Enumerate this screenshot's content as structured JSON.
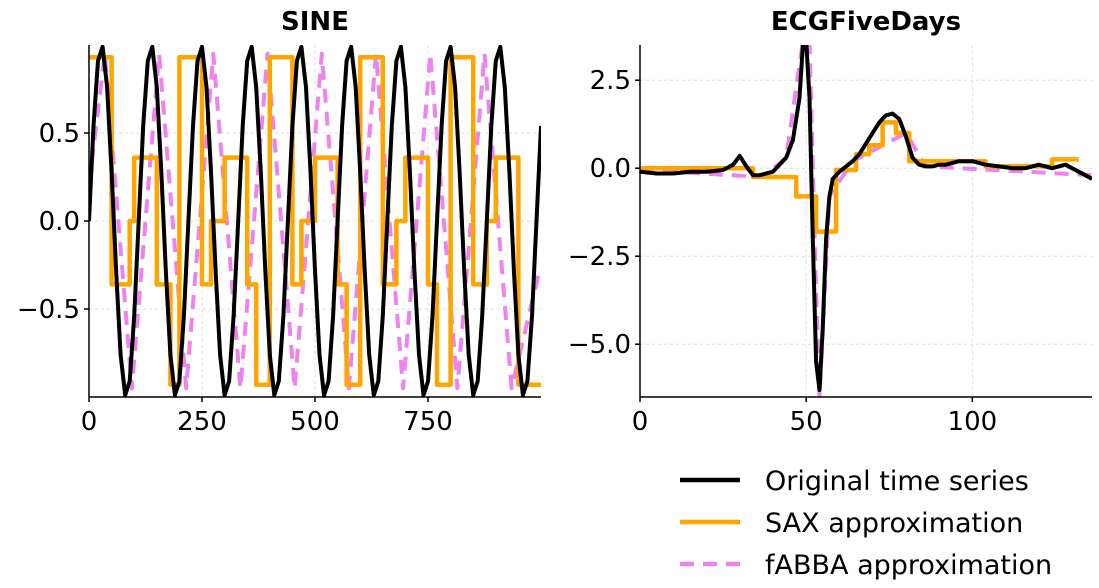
{
  "chart_data": [
    {
      "type": "line",
      "title": "SINE",
      "xlabel": "",
      "ylabel": "",
      "xlim": [
        0,
        1000
      ],
      "ylim": [
        -1.0,
        1.0
      ],
      "xticks": [
        0,
        250,
        500,
        750
      ],
      "yticks": [
        0.5,
        0.0,
        -0.5
      ],
      "xtick_labels": [
        "0",
        "250",
        "500",
        "750"
      ],
      "ytick_labels": [
        "0.5",
        "0.0",
        "−0.5"
      ],
      "grid": true,
      "series": [
        {
          "key": "original",
          "color": "#000000",
          "style": "solid",
          "x": [
            0,
            10,
            20,
            30,
            40,
            50,
            60,
            70,
            80,
            90,
            100,
            110,
            120,
            130,
            140,
            150,
            160,
            170,
            180,
            190,
            200,
            210,
            220,
            230,
            240,
            250,
            260,
            270,
            280,
            290,
            300,
            310,
            320,
            330,
            340,
            350,
            360,
            370,
            380,
            390,
            400,
            410,
            420,
            430,
            440,
            450,
            460,
            470,
            480,
            490,
            500,
            510,
            520,
            530,
            540,
            550,
            560,
            570,
            580,
            590,
            600,
            610,
            620,
            630,
            640,
            650,
            660,
            670,
            680,
            690,
            700,
            710,
            720,
            730,
            740,
            750,
            760,
            770,
            780,
            790,
            800,
            810,
            820,
            830,
            840,
            850,
            860,
            870,
            880,
            890,
            900,
            910,
            920,
            930,
            940,
            950,
            960,
            970,
            980,
            990,
            1000
          ],
          "y": [
            0.0,
            0.54,
            0.91,
            0.99,
            0.76,
            0.28,
            -0.28,
            -0.76,
            -0.99,
            -0.91,
            -0.54,
            0.0,
            0.54,
            0.91,
            0.99,
            0.76,
            0.28,
            -0.28,
            -0.76,
            -0.99,
            -0.91,
            -0.54,
            0.0,
            0.54,
            0.91,
            0.99,
            0.76,
            0.28,
            -0.28,
            -0.76,
            -0.99,
            -0.91,
            -0.54,
            0.0,
            0.54,
            0.91,
            0.99,
            0.76,
            0.28,
            -0.28,
            -0.76,
            -0.99,
            -0.91,
            -0.54,
            0.0,
            0.54,
            0.91,
            0.99,
            0.76,
            0.28,
            -0.28,
            -0.76,
            -0.99,
            -0.91,
            -0.54,
            0.0,
            0.54,
            0.91,
            0.99,
            0.76,
            0.28,
            -0.28,
            -0.76,
            -0.99,
            -0.91,
            -0.54,
            0.0,
            0.54,
            0.91,
            0.99,
            0.76,
            0.28,
            -0.28,
            -0.76,
            -0.99,
            -0.91,
            -0.54,
            0.0,
            0.54,
            0.91,
            0.99,
            0.76,
            0.28,
            -0.28,
            -0.76,
            -0.99,
            -0.91,
            -0.54,
            0.0,
            0.54,
            0.91,
            0.99,
            0.76,
            0.28,
            -0.28,
            -0.76,
            -0.99,
            -0.91,
            -0.54,
            0.0,
            0.54
          ]
        },
        {
          "key": "sax",
          "color": "#ffa500",
          "style": "step",
          "x": [
            0,
            50,
            50,
            90,
            90,
            100,
            100,
            150,
            150,
            180,
            180,
            200,
            200,
            250,
            250,
            270,
            270,
            300,
            300,
            350,
            350,
            370,
            370,
            400,
            400,
            450,
            450,
            470,
            470,
            500,
            500,
            550,
            550,
            570,
            570,
            600,
            600,
            650,
            650,
            680,
            680,
            700,
            700,
            750,
            750,
            770,
            770,
            800,
            800,
            850,
            850,
            880,
            880,
            900,
            900,
            950,
            950,
            980,
            980,
            1000
          ],
          "y": [
            0.93,
            0.93,
            -0.36,
            -0.36,
            0.0,
            0.0,
            0.36,
            0.36,
            -0.36,
            -0.36,
            -0.93,
            -0.93,
            0.93,
            0.93,
            -0.36,
            -0.36,
            0.0,
            0.0,
            0.36,
            0.36,
            -0.36,
            -0.36,
            -0.93,
            -0.93,
            0.93,
            0.93,
            -0.36,
            -0.36,
            0.0,
            0.0,
            0.36,
            0.36,
            -0.36,
            -0.36,
            -0.93,
            -0.93,
            0.93,
            0.93,
            -0.36,
            -0.36,
            0.0,
            0.0,
            0.36,
            0.36,
            -0.36,
            -0.36,
            -0.93,
            -0.93,
            0.93,
            0.93,
            -0.36,
            -0.36,
            0.0,
            0.0,
            0.36,
            0.36,
            -0.93,
            -0.93,
            -0.93,
            -0.93
          ]
        },
        {
          "key": "fabba",
          "color": "#ee82ee",
          "style": "dashed",
          "x": [
            0,
            35,
            95,
            155,
            215,
            275,
            335,
            395,
            455,
            515,
            575,
            635,
            695,
            755,
            815,
            875,
            935,
            995,
            1000
          ],
          "y": [
            0.2,
            0.95,
            -0.95,
            0.95,
            -0.95,
            0.95,
            -0.95,
            0.95,
            -0.95,
            0.95,
            -0.95,
            0.95,
            -0.95,
            0.95,
            -0.95,
            0.95,
            -0.95,
            -0.3,
            -0.3
          ]
        }
      ]
    },
    {
      "type": "line",
      "title": "ECGFiveDays",
      "xlabel": "",
      "ylabel": "",
      "xlim": [
        0,
        136
      ],
      "ylim": [
        -6.5,
        3.5
      ],
      "xticks": [
        0,
        50,
        100
      ],
      "yticks": [
        2.5,
        0.0,
        -2.5,
        -5.0
      ],
      "xtick_labels": [
        "0",
        "50",
        "100"
      ],
      "ytick_labels": [
        "2.5",
        "0.0",
        "−2.5",
        "−5.0"
      ],
      "grid": true,
      "series": [
        {
          "key": "original",
          "color": "#000000",
          "style": "solid",
          "x": [
            0,
            5,
            10,
            15,
            20,
            25,
            28,
            30,
            32,
            34,
            36,
            40,
            44,
            46,
            48,
            49,
            50,
            51,
            52,
            53,
            54,
            55,
            56,
            57,
            58,
            60,
            62,
            64,
            66,
            68,
            70,
            72,
            74,
            76,
            78,
            80,
            82,
            84,
            86,
            88,
            90,
            92,
            94,
            96,
            100,
            104,
            108,
            112,
            116,
            120,
            124,
            128,
            132,
            136
          ],
          "y": [
            -0.1,
            -0.15,
            -0.15,
            -0.1,
            -0.1,
            -0.05,
            0.1,
            0.35,
            0.05,
            -0.2,
            -0.2,
            -0.1,
            0.3,
            0.8,
            2.0,
            3.5,
            3.6,
            2.0,
            -2.0,
            -5.5,
            -6.3,
            -4.5,
            -2.0,
            -0.8,
            -0.3,
            -0.1,
            0.05,
            0.2,
            0.4,
            0.7,
            1.0,
            1.3,
            1.5,
            1.55,
            1.4,
            0.9,
            0.3,
            0.1,
            0.05,
            0.05,
            0.1,
            0.1,
            0.15,
            0.2,
            0.2,
            0.1,
            0.05,
            0.0,
            0.0,
            0.1,
            0.0,
            0.1,
            -0.1,
            -0.3
          ]
        },
        {
          "key": "sax",
          "color": "#ffa500",
          "style": "step",
          "x": [
            0,
            27,
            27,
            34,
            34,
            43,
            43,
            47,
            47,
            53,
            53,
            55,
            55,
            59,
            59,
            65,
            65,
            69,
            69,
            73,
            73,
            77,
            77,
            81,
            81,
            89,
            89,
            96,
            96,
            104,
            104,
            124,
            124,
            128,
            128,
            132
          ],
          "y": [
            0.0,
            0.0,
            0.0,
            0.0,
            -0.25,
            -0.25,
            -0.25,
            -0.25,
            -0.8,
            -0.8,
            -1.8,
            -1.8,
            -1.8,
            -1.8,
            -0.05,
            -0.05,
            0.4,
            0.4,
            0.65,
            0.65,
            1.3,
            1.3,
            1.0,
            1.0,
            0.2,
            0.2,
            0.2,
            0.2,
            0.2,
            0.2,
            0.05,
            0.05,
            0.25,
            0.25,
            0.25,
            0.25
          ]
        },
        {
          "key": "fabba",
          "color": "#ee82ee",
          "style": "dashed",
          "x": [
            0,
            37,
            44,
            49,
            51,
            53,
            54,
            57,
            64,
            80,
            86,
            136
          ],
          "y": [
            -0.05,
            -0.25,
            0.3,
            3.6,
            3.6,
            -3.5,
            -6.5,
            -0.8,
            0.2,
            1.0,
            0.05,
            -0.2
          ]
        }
      ]
    }
  ],
  "legend": {
    "entries": [
      {
        "series_key": "original",
        "label": "Original time series",
        "color": "#000000",
        "style": "solid"
      },
      {
        "series_key": "sax",
        "label": "SAX approximation",
        "color": "#ffa500",
        "style": "solid"
      },
      {
        "series_key": "fabba",
        "label": "fABBA approximation",
        "color": "#ee82ee",
        "style": "dashed"
      }
    ],
    "placement": "bottom-right"
  }
}
